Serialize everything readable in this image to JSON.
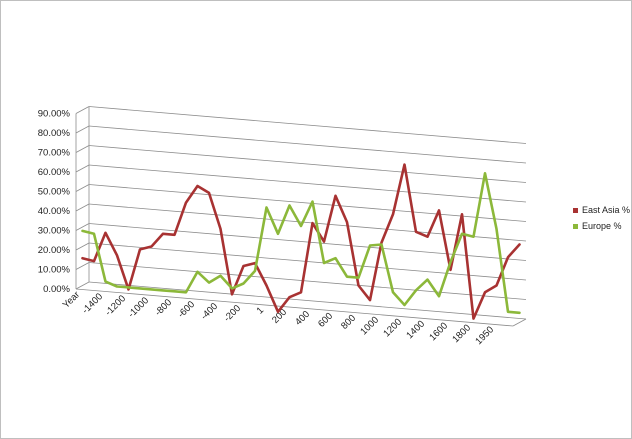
{
  "chart_data": {
    "type": "line",
    "title": "",
    "xlabel": "",
    "ylabel": "",
    "ylim": [
      0,
      90
    ],
    "y_tick_labels": [
      "0.00%",
      "10.00%",
      "20.00%",
      "30.00%",
      "40.00%",
      "50.00%",
      "60.00%",
      "70.00%",
      "80.00%",
      "90.00%"
    ],
    "x_tick_labels": [
      "Year",
      "-1400",
      "-1200",
      "-1000",
      "-800",
      "-600",
      "-400",
      "-200",
      "1",
      "200",
      "400",
      "600",
      "800",
      "1000",
      "1200",
      "1400",
      "1600",
      "1800",
      "1950"
    ],
    "grid": true,
    "legend_position": "right",
    "x": [
      "Year",
      "-1500",
      "-1400",
      "-1300",
      "-1200",
      "-1100",
      "-1000",
      "-900",
      "-800",
      "-700",
      "-600",
      "-500",
      "-400",
      "-300",
      "-200",
      "-100",
      "1",
      "100",
      "200",
      "300",
      "400",
      "500",
      "600",
      "700",
      "800",
      "900",
      "1000",
      "1100",
      "1200",
      "1300",
      "1400",
      "1500",
      "1600",
      "1700",
      "1800",
      "1850",
      "1900",
      "1950",
      "2000"
    ],
    "series": [
      {
        "name": "East Asia %",
        "color": "#a83232",
        "values": [
          14,
          13,
          28,
          17,
          0,
          21,
          23,
          30,
          30,
          47,
          56,
          53,
          35,
          2,
          17,
          19,
          8,
          -5,
          3,
          6,
          42,
          33,
          57,
          44,
          12,
          5,
          35,
          50,
          76,
          42,
          40,
          54,
          24,
          53,
          0,
          14,
          18,
          33,
          40
        ]
      },
      {
        "name": "Europe %",
        "color": "#8cb83a",
        "values": [
          28,
          27,
          3,
          1,
          1,
          1,
          1,
          1,
          1,
          1,
          12,
          7,
          11,
          5,
          8,
          15,
          48,
          35,
          50,
          40,
          53,
          22,
          25,
          16,
          16,
          33,
          34,
          10,
          4,
          12,
          18,
          10,
          28,
          43,
          42,
          75,
          47,
          5,
          5
        ]
      }
    ]
  }
}
